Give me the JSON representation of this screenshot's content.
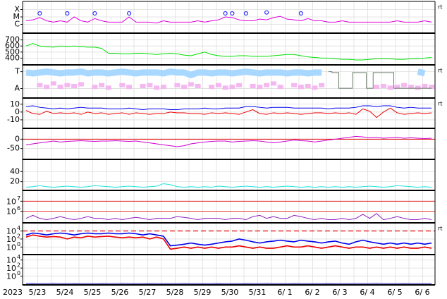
{
  "x_axis": {
    "year": "2023",
    "categories": [
      "5/23",
      "5/24",
      "5/25",
      "5/26",
      "5/27",
      "5/28",
      "5/29",
      "5/30",
      "5/31",
      "6/ 1",
      "6/ 2",
      "6/ 3",
      "6/ 4",
      "6/ 5",
      "6/ 6"
    ]
  },
  "chart_data": [
    {
      "type": "line",
      "log": true,
      "ylim": [
        8e-08,
        0.001
      ],
      "side_label": "rt",
      "grid": true,
      "grid_color": "#dddddd",
      "yticks": [
        {
          "value": 0.0001,
          "label": "X"
        },
        {
          "value": 1e-05,
          "label": "M"
        },
        {
          "value": 1e-06,
          "label": "C"
        }
      ],
      "series": [
        {
          "color": "#e000e0",
          "style": "line",
          "values": [
            3e-06,
            4e-06,
            8e-06,
            3e-06,
            2e-06,
            3e-06,
            2e-06,
            1e-05,
            3e-06,
            2e-06,
            6e-06,
            3e-06,
            2e-06,
            2e-06,
            2e-06,
            1e-05,
            2e-06,
            2e-06,
            2e-06,
            1.5e-06,
            3e-06,
            2e-06,
            2e-06,
            2e-06,
            2e-06,
            3e-06,
            2e-06,
            3e-06,
            4e-06,
            1e-05,
            8e-06,
            4e-06,
            3e-06,
            3e-06,
            5e-06,
            4e-06,
            8e-06,
            1.2e-05,
            5e-06,
            4e-06,
            3e-06,
            6e-06,
            3e-06,
            3e-06,
            2e-06,
            2e-06,
            3e-06,
            2e-06,
            2e-06,
            2e-06,
            2e-06,
            2e-06,
            2e-06,
            2e-06,
            3e-06,
            2e-06,
            2e-06,
            2e-06,
            3e-06,
            2e-06
          ]
        },
        {
          "color": "#3030ff",
          "style": "circles",
          "values": [
            null,
            null,
            3e-05,
            null,
            null,
            null,
            3e-05,
            null,
            null,
            null,
            3e-05,
            null,
            null,
            null,
            null,
            3e-05,
            null,
            null,
            null,
            null,
            null,
            null,
            null,
            null,
            null,
            null,
            null,
            null,
            null,
            3e-05,
            3e-05,
            null,
            3e-05,
            null,
            null,
            4e-05,
            null,
            null,
            null,
            null,
            3e-05,
            null,
            null,
            null,
            null,
            null,
            null,
            null,
            null,
            null,
            null,
            null,
            null,
            null,
            null,
            null,
            null,
            null,
            null,
            null
          ]
        }
      ]
    },
    {
      "type": "line",
      "log": false,
      "ylim": [
        300,
        800
      ],
      "yticks": [
        700,
        600,
        500,
        400
      ],
      "grid": true,
      "grid_color": "#dddddd",
      "series": [
        {
          "color": "#00e000",
          "style": "line",
          "values": [
            600,
            640,
            600,
            590,
            580,
            600,
            590,
            600,
            590,
            580,
            580,
            560,
            480,
            480,
            470,
            470,
            480,
            480,
            470,
            460,
            470,
            480,
            470,
            450,
            440,
            470,
            500,
            460,
            440,
            430,
            430,
            440,
            440,
            430,
            430,
            430,
            440,
            450,
            460,
            460,
            440,
            420,
            410,
            400,
            400,
            390,
            380,
            380,
            370,
            370,
            380,
            390,
            390,
            390,
            380,
            380,
            390,
            390,
            400,
            410
          ]
        }
      ]
    },
    {
      "type": "line",
      "log": false,
      "ylim": [
        -0.52,
        1.36
      ],
      "side_label": "rt",
      "grid": true,
      "grid_color": "#dddddd",
      "yticks": [
        {
          "value": 1,
          "label": "T"
        },
        {
          "value": 0,
          "label": "A"
        }
      ],
      "series": [
        {
          "color": "#a8d8ff",
          "style": "band",
          "values": [
            0.95,
            0.9,
            0.95,
            1,
            0.95,
            0.9,
            0.95,
            0.95,
            1,
            0.9,
            0.95,
            0.95,
            0.9,
            0.95,
            1,
            0.95,
            0.9,
            0.95,
            0.95,
            0.95,
            0.9,
            1,
            0.95,
            0.95,
            0.8,
            0.95,
            0.95,
            0.9,
            0.95,
            0.95,
            0.9,
            0.95,
            1,
            0.95,
            0.9,
            0.95,
            0.95,
            0.95,
            0.9,
            0.95,
            0.95,
            0.9,
            0.95,
            0.95,
            null,
            null,
            null,
            null,
            null,
            null,
            null,
            null,
            null,
            0.9,
            null,
            0.95,
            null,
            1,
            0.9,
            null
          ]
        },
        {
          "color": "#f4b8f0",
          "style": "dots",
          "values": [
            null,
            null,
            0.2,
            0.1,
            0.3,
            0.1,
            0.2,
            0.15,
            0.25,
            null,
            0.1,
            0.2,
            0.05,
            null,
            0.2,
            0.1,
            null,
            0.15,
            0.2,
            0.05,
            0.1,
            null,
            0.2,
            0.1,
            0.25,
            0.15,
            null,
            0.1,
            0.2,
            0.05,
            0.1,
            0.2,
            null,
            0.15,
            0.1,
            0.2,
            0.3,
            0.1,
            null,
            0.2,
            0.1,
            0.15,
            0.05,
            0.2,
            null,
            null,
            null,
            null,
            null,
            null,
            null,
            0.1,
            0.15,
            0.05,
            0.1,
            0.2,
            0.1,
            0.05,
            0.15,
            0.1
          ]
        },
        {
          "color": "#708070",
          "style": "step",
          "values": [
            null,
            null,
            null,
            null,
            null,
            null,
            null,
            null,
            null,
            null,
            null,
            null,
            null,
            null,
            null,
            null,
            null,
            null,
            null,
            null,
            null,
            null,
            null,
            null,
            null,
            null,
            null,
            null,
            null,
            null,
            null,
            null,
            null,
            null,
            null,
            null,
            null,
            null,
            null,
            null,
            null,
            null,
            null,
            null,
            1,
            0.95,
            0.02,
            0.02,
            0.95,
            0.95,
            0.02,
            0.95,
            0.95,
            0.95,
            0.02,
            0.02,
            0.02,
            0.02,
            0.02,
            0.02
          ]
        }
      ]
    },
    {
      "type": "line",
      "log": false,
      "ylim": [
        -20,
        17
      ],
      "yticks": [
        10,
        0,
        -10
      ],
      "side_label": "rt",
      "grid": true,
      "grid_color": "#dddddd",
      "series": [
        {
          "color": "#0000ee",
          "style": "line",
          "values": [
            7,
            8,
            6,
            5,
            4,
            5,
            4,
            5,
            6,
            5,
            5,
            5,
            4,
            4,
            4,
            5,
            4,
            3,
            4,
            4,
            4,
            3,
            3,
            4,
            4,
            4,
            5,
            4,
            4,
            5,
            5,
            5,
            7,
            7,
            6,
            5,
            6,
            6,
            6,
            5,
            5,
            5,
            5,
            5,
            4,
            5,
            5,
            5,
            6,
            8,
            8,
            7,
            8,
            8,
            6,
            5,
            6,
            5,
            5,
            5
          ]
        },
        {
          "color": "#ee0000",
          "style": "line",
          "values": [
            2,
            -2,
            -3,
            1,
            -2,
            -1,
            -2,
            -1,
            -3,
            0,
            -2,
            -1,
            -3,
            -2,
            -1,
            -3,
            -1,
            -2,
            -3,
            -2,
            -2,
            0,
            -1,
            -1,
            -2,
            -2,
            -3,
            -1,
            -2,
            -1,
            -2,
            -3,
            0,
            3,
            -2,
            -3,
            -1,
            -2,
            -1,
            -2,
            -3,
            -2,
            -1,
            -1,
            -2,
            -1,
            -2,
            -1,
            -3,
            4,
            1,
            -7,
            0,
            5,
            -1,
            -3,
            -2,
            -1,
            -2,
            -1
          ]
        }
      ]
    },
    {
      "type": "line",
      "log": false,
      "ylim": [
        -104,
        54
      ],
      "yticks": [
        0,
        -50
      ],
      "grid": true,
      "grid_color": "#dddddd",
      "zero_line_color": "#e00000",
      "series": [
        {
          "color": "#d000d0",
          "style": "line",
          "values": [
            -30,
            -25,
            -20,
            -15,
            -10,
            -15,
            -12,
            -10,
            -8,
            -10,
            -12,
            -10,
            -10,
            -8,
            -10,
            -12,
            -10,
            -15,
            -20,
            -25,
            -30,
            -35,
            -40,
            -35,
            -25,
            -20,
            -15,
            -12,
            -10,
            -10,
            -15,
            -12,
            -10,
            -8,
            -10,
            -15,
            -20,
            -15,
            -10,
            -5,
            -8,
            -10,
            -15,
            -10,
            -5,
            0,
            5,
            10,
            15,
            12,
            8,
            10,
            5,
            8,
            10,
            5,
            8,
            5,
            3,
            5
          ]
        }
      ]
    },
    {
      "type": "line",
      "log": false,
      "ylim": [
        4,
        63
      ],
      "yticks": [
        40,
        20
      ],
      "grid": true,
      "grid_color": "#dddddd",
      "series": [
        {
          "color": "#20e0e0",
          "style": "line",
          "values": [
            9,
            10,
            12,
            10,
            9,
            10,
            11,
            10,
            9,
            10,
            12,
            11,
            10,
            9,
            10,
            11,
            10,
            9,
            10,
            11,
            16,
            14,
            10,
            9,
            10,
            9,
            10,
            9,
            11,
            10,
            9,
            10,
            11,
            10,
            9,
            10,
            9,
            10,
            11,
            10,
            9,
            10,
            9,
            10,
            9,
            10,
            9,
            10,
            9,
            10,
            11,
            10,
            9,
            10,
            12,
            11,
            10,
            9,
            10,
            9
          ]
        }
      ]
    },
    {
      "type": "line",
      "log": true,
      "ylim": [
        85000,
        100000000
      ],
      "grid": true,
      "grid_color": "#e00000",
      "yticks": [
        {
          "value": 10000000,
          "label": "10",
          "exponent": "7"
        },
        {
          "value": 1000000,
          "label": "10",
          "exponent": "6"
        }
      ],
      "series": [
        {
          "color": "#9020c0",
          "style": "line",
          "values": [
            200000.0,
            400000.0,
            200000.0,
            150000.0,
            200000.0,
            300000.0,
            200000.0,
            150000.0,
            200000.0,
            300000.0,
            200000.0,
            200000.0,
            150000.0,
            200000.0,
            150000.0,
            200000.0,
            250000.0,
            200000.0,
            150000.0,
            200000.0,
            200000.0,
            200000.0,
            300000.0,
            250000.0,
            200000.0,
            150000.0,
            200000.0,
            200000.0,
            200000.0,
            150000.0,
            200000.0,
            200000.0,
            150000.0,
            300000.0,
            400000.0,
            200000.0,
            300000.0,
            200000.0,
            200000.0,
            400000.0,
            300000.0,
            200000.0,
            150000.0,
            200000.0,
            150000.0,
            150000.0,
            200000.0,
            150000.0,
            200000.0,
            500000.0,
            200000.0,
            600000.0,
            150000.0,
            200000.0,
            300000.0,
            200000.0,
            150000.0,
            150000.0,
            200000.0,
            150000.0
          ]
        }
      ]
    },
    {
      "type": "line",
      "log": true,
      "ylim": [
        0.02,
        700000
      ],
      "side_label": "rt",
      "grid": true,
      "grid_color": "#dddddd",
      "threshold": 10000,
      "threshold_color": "#e00000",
      "yticks": [
        {
          "value": 10000,
          "label": "10",
          "exponent": "4"
        },
        {
          "value": 100,
          "label": "10",
          "exponent": "2"
        },
        {
          "value": 1,
          "label": "10",
          "exponent": "0"
        }
      ],
      "series": [
        {
          "color": "#0000ee",
          "style": "thick",
          "values": [
            1000,
            3000,
            2000,
            1000,
            2000,
            3000,
            2000,
            1000,
            2000,
            3000,
            2000,
            2000,
            3000,
            2000,
            2000,
            3000,
            2000,
            1000,
            2000,
            1000,
            500,
            2,
            3,
            5,
            10,
            5,
            3,
            5,
            10,
            20,
            30,
            100,
            50,
            20,
            10,
            20,
            30,
            50,
            30,
            20,
            50,
            30,
            20,
            10,
            20,
            30,
            10,
            5,
            20,
            50,
            20,
            10,
            5,
            10,
            5,
            10,
            5,
            10,
            5,
            10
          ]
        },
        {
          "color": "#ee0000",
          "style": "thick",
          "values": [
            300,
            1000,
            500,
            300,
            400,
            300,
            100,
            300,
            200,
            500,
            300,
            400,
            500,
            300,
            200,
            300,
            200,
            300,
            100,
            300,
            100,
            0.3,
            0.5,
            1,
            0.5,
            1,
            0.5,
            1,
            0.5,
            1,
            1,
            2,
            1,
            0.5,
            1,
            0.5,
            0.5,
            1,
            2,
            1,
            1,
            2,
            1,
            0.5,
            1,
            2,
            1,
            0.5,
            1,
            1,
            0.5,
            1,
            0.5,
            1,
            0.5,
            1,
            0.5,
            0.5,
            1,
            0.5
          ]
        }
      ]
    },
    {
      "type": "line",
      "log": true,
      "ylim": [
        0.01,
        150000
      ],
      "grid": true,
      "grid_color": "#dddddd",
      "yticks": [
        {
          "value": 10000,
          "label": "10",
          "exponent": "4"
        },
        {
          "value": 100,
          "label": "10",
          "exponent": "2"
        },
        {
          "value": 1,
          "label": "10",
          "exponent": "0"
        }
      ],
      "series": [
        {
          "color": "#2020c0",
          "style": "line",
          "values": [
            0.015,
            0.016,
            0.014,
            0.015,
            0.017,
            0.015,
            0.014,
            0.016,
            0.015,
            0.015,
            0.014,
            0.016,
            0.015,
            0.015,
            0.017,
            0.015,
            0.014,
            0.015,
            0.016,
            0.015,
            0.015,
            0.014,
            0.015,
            0.016,
            0.015,
            0.015,
            0.014,
            0.015,
            0.016,
            0.015,
            0.015,
            0.014,
            0.016,
            0.015,
            0.015,
            0.017,
            0.015,
            0.014,
            0.015,
            0.016,
            0.015,
            0.015,
            0.014,
            0.015,
            0.016,
            0.015,
            0.015,
            0.014,
            0.016,
            0.015,
            0.015,
            0.017,
            0.015,
            0.014,
            0.015,
            0.016,
            0.015,
            0.015,
            0.014,
            0.015
          ]
        }
      ]
    }
  ]
}
